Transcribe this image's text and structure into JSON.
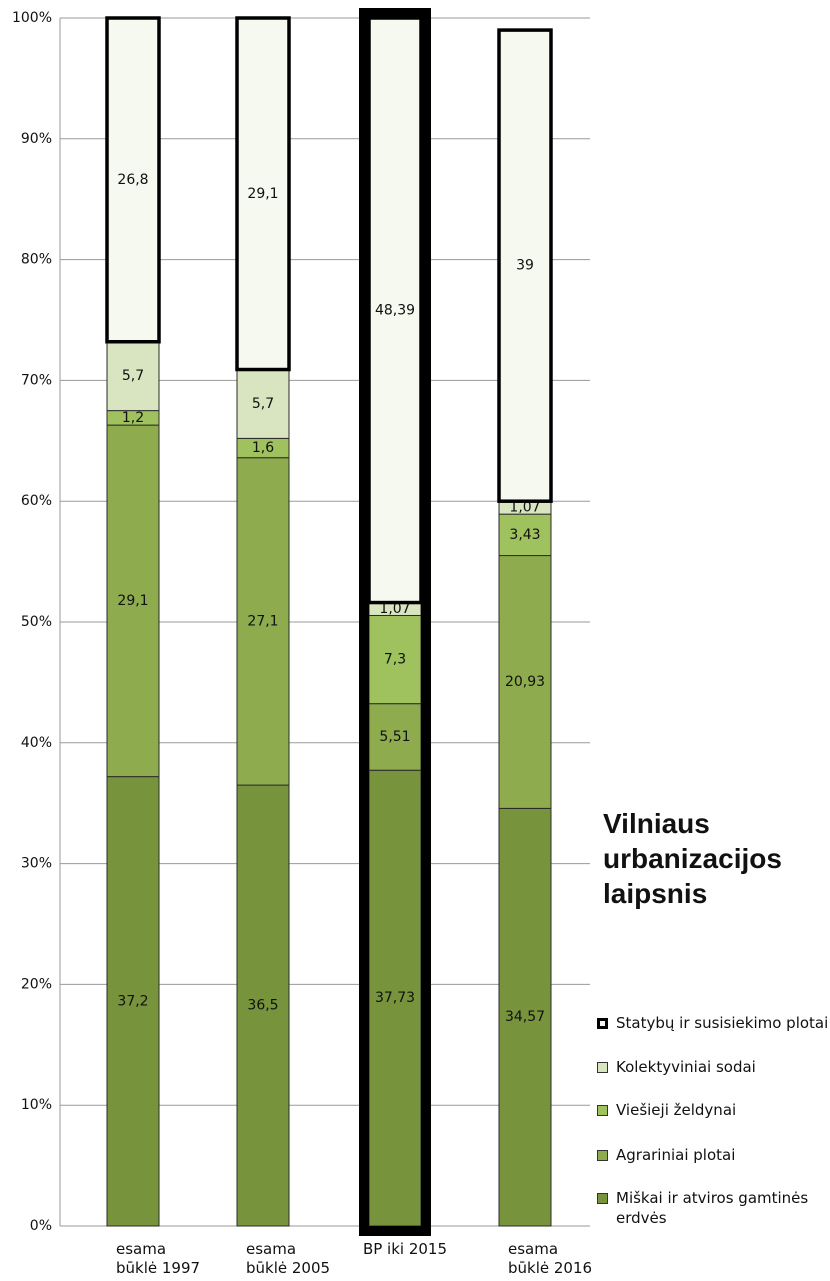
{
  "chart_data": {
    "type": "stacked_bar",
    "title": "Vilniaus urbanizacijos laipsnis",
    "categories": [
      "esama\nbūklė  1997",
      "esama\nbūklė  2005",
      "BP iki 2015",
      "esama\nbūklė  2016"
    ],
    "series": [
      {
        "name": "Miškai ir atviros gamtinės erdvės",
        "color": "#77933c",
        "values": [
          37.2,
          36.5,
          37.73,
          34.57
        ],
        "value_labels": [
          "37,2",
          "36,5",
          "37,73",
          "34,57"
        ]
      },
      {
        "name": "Agrariniai plotai",
        "color": "#8eab4e",
        "values": [
          29.1,
          27.1,
          5.51,
          20.93
        ],
        "value_labels": [
          "29,1",
          "27,1",
          "5,51",
          "20,93"
        ]
      },
      {
        "name": "Viešieji želdynai",
        "color": "#9fc15e",
        "values": [
          1.2,
          1.6,
          7.3,
          3.43
        ],
        "value_labels": [
          "1,2",
          "1,6",
          "7,3",
          "3,43"
        ]
      },
      {
        "name": "Kolektyviniai sodai",
        "color": "#d8e5c0",
        "values": [
          5.7,
          5.7,
          1.07,
          1.07
        ],
        "value_labels": [
          "5,7",
          "5,7",
          "1,07",
          "1,07"
        ]
      },
      {
        "name": "Statybų ir susisiekimo plotai",
        "color": "#f5f9ef",
        "border": "#000000",
        "values": [
          26.8,
          29.1,
          48.39,
          39
        ],
        "value_labels": [
          "26,8",
          "29,1",
          "48,39",
          "39"
        ]
      }
    ],
    "highlight_category": 2,
    "ylim": [
      0,
      100
    ],
    "yticks": [
      {
        "value": 0,
        "label": "0%"
      },
      {
        "value": 10,
        "label": "10%"
      },
      {
        "value": 20,
        "label": "20%"
      },
      {
        "value": 30,
        "label": "30%"
      },
      {
        "value": 40,
        "label": "40%"
      },
      {
        "value": 50,
        "label": "50%"
      },
      {
        "value": 60,
        "label": "60%"
      },
      {
        "value": 70,
        "label": "70%"
      },
      {
        "value": 80,
        "label": "80%"
      },
      {
        "value": 90,
        "label": "90%"
      },
      {
        "value": 100,
        "label": "100%"
      }
    ],
    "grid": true
  }
}
